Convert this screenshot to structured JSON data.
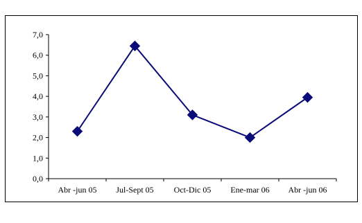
{
  "chart_data": {
    "type": "line",
    "categories": [
      "Abr -jun 05",
      "Jul-Sept 05",
      "Oct-Dic 05",
      "Ene-mar 06",
      "Abr -jun 06"
    ],
    "series": [
      {
        "values": [
          2.3,
          6.45,
          3.1,
          2.0,
          3.95
        ]
      }
    ],
    "ylim": [
      0,
      7
    ],
    "yticks": [
      "0,0",
      "1,0",
      "2,0",
      "3,0",
      "4,0",
      "5,0",
      "6,0",
      "7,0"
    ],
    "grid": false,
    "legend": "none",
    "colors": {
      "line": "#0a0a78",
      "marker": "#0a0a78",
      "axis": "#000000"
    }
  }
}
